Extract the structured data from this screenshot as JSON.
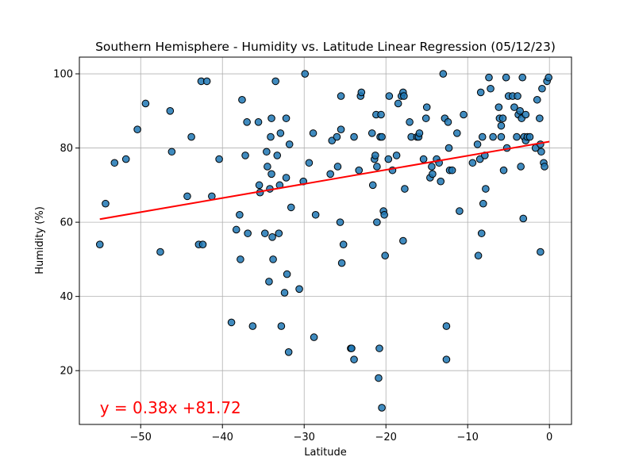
{
  "chart_data": {
    "type": "scatter",
    "title": "Southern Hemisphere - Humidity vs. Latitude Linear Regression (05/12/23)",
    "xlabel": "Latitude",
    "ylabel": "Humidity (%)",
    "xlim": [
      -57.5,
      2.7
    ],
    "ylim": [
      5.5,
      104.5
    ],
    "xticks": [
      -50,
      -40,
      -30,
      -20,
      -10,
      0
    ],
    "yticks": [
      20,
      40,
      60,
      80,
      100
    ],
    "grid": true,
    "point_color": "#1f77b4",
    "point_edge_color": "#000000",
    "regression": {
      "slope": 0.38,
      "intercept": 81.72,
      "x_range": [
        -55,
        0
      ],
      "color": "#ff0000",
      "equation": "y = 0.38x +81.72",
      "equation_pos": [
        -55,
        10
      ],
      "equation_color": "#ff0000"
    },
    "points": [
      [
        -55,
        54
      ],
      [
        -54.3,
        65
      ],
      [
        -53.2,
        76
      ],
      [
        -51.8,
        77
      ],
      [
        -50.4,
        85
      ],
      [
        -49.4,
        92
      ],
      [
        -47.6,
        52
      ],
      [
        -46.4,
        90
      ],
      [
        -46.2,
        79
      ],
      [
        -44.3,
        67
      ],
      [
        -43.8,
        83
      ],
      [
        -42.9,
        54
      ],
      [
        -42.4,
        54
      ],
      [
        -42.6,
        98
      ],
      [
        -41.9,
        98
      ],
      [
        -41.3,
        67
      ],
      [
        -40.4,
        77
      ],
      [
        -38.9,
        33
      ],
      [
        -38.3,
        58
      ],
      [
        -37.9,
        62
      ],
      [
        -37.8,
        50
      ],
      [
        -37.6,
        93
      ],
      [
        -37.2,
        78
      ],
      [
        -37,
        87
      ],
      [
        -36.9,
        57
      ],
      [
        -36.3,
        32
      ],
      [
        -35.6,
        87
      ],
      [
        -35.5,
        70
      ],
      [
        -35.4,
        68
      ],
      [
        -34.8,
        57
      ],
      [
        -34.6,
        79
      ],
      [
        -34.5,
        75
      ],
      [
        -34.3,
        44
      ],
      [
        -34.2,
        69
      ],
      [
        -34.1,
        83
      ],
      [
        -34,
        88
      ],
      [
        -34,
        73
      ],
      [
        -33.9,
        56
      ],
      [
        -33.8,
        50
      ],
      [
        -33.5,
        98
      ],
      [
        -33.3,
        78
      ],
      [
        -33.1,
        57
      ],
      [
        -33,
        70
      ],
      [
        -32.9,
        84
      ],
      [
        -32.8,
        32
      ],
      [
        -32.4,
        41
      ],
      [
        -32.2,
        88
      ],
      [
        -32.2,
        72
      ],
      [
        -32.1,
        46
      ],
      [
        -31.9,
        25
      ],
      [
        -31.8,
        81
      ],
      [
        -31.6,
        64
      ],
      [
        -30.6,
        42
      ],
      [
        -30.1,
        71
      ],
      [
        -29.9,
        100
      ],
      [
        -29.4,
        76
      ],
      [
        -28.9,
        84
      ],
      [
        -28.8,
        29
      ],
      [
        -28.6,
        62
      ],
      [
        -26.8,
        73
      ],
      [
        -26.6,
        82
      ],
      [
        -26,
        83
      ],
      [
        -25.9,
        75
      ],
      [
        -25.6,
        60
      ],
      [
        -25.5,
        85
      ],
      [
        -25.5,
        94
      ],
      [
        -25.4,
        49
      ],
      [
        -25.2,
        54
      ],
      [
        -24.3,
        26
      ],
      [
        -24.2,
        26
      ],
      [
        -23.9,
        23
      ],
      [
        -23.9,
        83
      ],
      [
        -23.3,
        74
      ],
      [
        -23.1,
        94
      ],
      [
        -23,
        95
      ],
      [
        -21.7,
        84
      ],
      [
        -21.6,
        70
      ],
      [
        -21.4,
        77
      ],
      [
        -21.3,
        78
      ],
      [
        -21.2,
        89
      ],
      [
        -21.1,
        60
      ],
      [
        -21.1,
        75
      ],
      [
        -20.9,
        18
      ],
      [
        -20.8,
        26
      ],
      [
        -20.7,
        83
      ],
      [
        -20.6,
        89
      ],
      [
        -20.5,
        83
      ],
      [
        -20.5,
        10
      ],
      [
        -20.3,
        63
      ],
      [
        -20.2,
        62
      ],
      [
        -20.1,
        51
      ],
      [
        -19.7,
        77
      ],
      [
        -19.6,
        94
      ],
      [
        -19.2,
        74
      ],
      [
        -18.7,
        78
      ],
      [
        -18.5,
        92
      ],
      [
        -18.1,
        94
      ],
      [
        -17.9,
        55
      ],
      [
        -17.9,
        95
      ],
      [
        -17.8,
        94
      ],
      [
        -17.7,
        69
      ],
      [
        -17.1,
        87
      ],
      [
        -16.9,
        83
      ],
      [
        -16.2,
        83
      ],
      [
        -16,
        83
      ],
      [
        -15.9,
        84
      ],
      [
        -15.4,
        77
      ],
      [
        -15.1,
        88
      ],
      [
        -15,
        91
      ],
      [
        -14.6,
        72
      ],
      [
        -14.4,
        75
      ],
      [
        -14.3,
        73
      ],
      [
        -13.8,
        77
      ],
      [
        -13.5,
        76
      ],
      [
        -13.3,
        71
      ],
      [
        -13,
        100
      ],
      [
        -12.8,
        88
      ],
      [
        -12.6,
        32
      ],
      [
        -12.6,
        23
      ],
      [
        -12.4,
        87
      ],
      [
        -12.3,
        80
      ],
      [
        -12.2,
        74
      ],
      [
        -11.9,
        74
      ],
      [
        -11.3,
        84
      ],
      [
        -11,
        63
      ],
      [
        -10.5,
        89
      ],
      [
        -9.4,
        76
      ],
      [
        -8.8,
        81
      ],
      [
        -8.7,
        51
      ],
      [
        -8.5,
        77
      ],
      [
        -8.4,
        95
      ],
      [
        -8.3,
        57
      ],
      [
        -8.2,
        83
      ],
      [
        -8.1,
        65
      ],
      [
        -7.9,
        78
      ],
      [
        -7.8,
        69
      ],
      [
        -7.4,
        99
      ],
      [
        -7.2,
        96
      ],
      [
        -6.9,
        83
      ],
      [
        -6.2,
        91
      ],
      [
        -6.1,
        88
      ],
      [
        -5.9,
        86
      ],
      [
        -5.9,
        83
      ],
      [
        -5.7,
        88
      ],
      [
        -5.6,
        74
      ],
      [
        -5.3,
        99
      ],
      [
        -5.2,
        80
      ],
      [
        -5,
        94
      ],
      [
        -4.5,
        94
      ],
      [
        -4.3,
        91
      ],
      [
        -4,
        83
      ],
      [
        -3.9,
        94
      ],
      [
        -3.8,
        89
      ],
      [
        -3.6,
        90
      ],
      [
        -3.5,
        75
      ],
      [
        -3.4,
        88
      ],
      [
        -3.3,
        99
      ],
      [
        -3.2,
        61
      ],
      [
        -3.1,
        83
      ],
      [
        -2.9,
        89
      ],
      [
        -2.9,
        82
      ],
      [
        -2.7,
        83
      ],
      [
        -2.4,
        83
      ],
      [
        -1.7,
        80
      ],
      [
        -1.5,
        93
      ],
      [
        -1.2,
        88
      ],
      [
        -1.1,
        52
      ],
      [
        -1.1,
        81
      ],
      [
        -1,
        79
      ],
      [
        -0.9,
        96
      ],
      [
        -0.7,
        76
      ],
      [
        -0.6,
        75
      ],
      [
        -0.3,
        98
      ],
      [
        -0.1,
        99
      ]
    ]
  }
}
